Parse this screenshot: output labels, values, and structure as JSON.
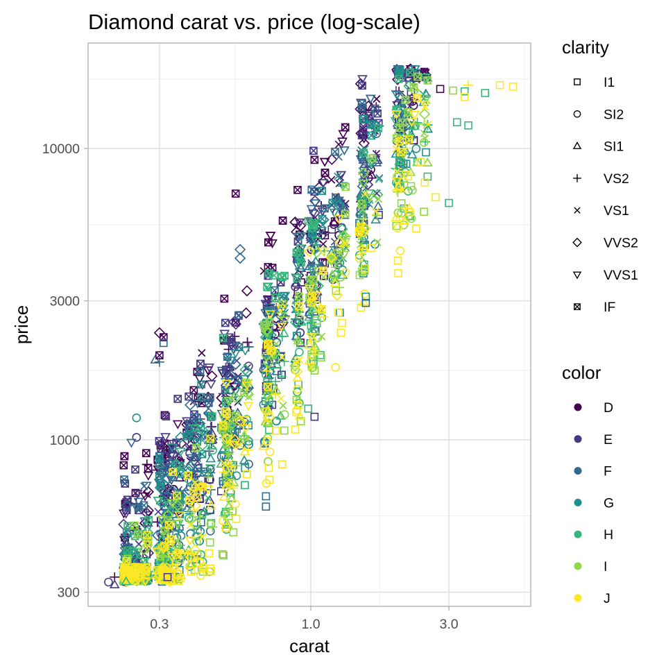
{
  "chart_data": {
    "type": "scatter",
    "title": "Diamond carat vs. price (log-scale)",
    "xlabel": "carat",
    "ylabel": "price",
    "x_scale": "log10",
    "y_scale": "log10",
    "xlim": [
      0.18,
      5.5
    ],
    "ylim": [
      250,
      20000
    ],
    "x_ticks": [
      {
        "value": 0.3,
        "label": "0.3"
      },
      {
        "value": 1.0,
        "label": "1.0"
      },
      {
        "value": 3.0,
        "label": "3.0"
      }
    ],
    "y_ticks": [
      {
        "value": 300,
        "label": "300"
      },
      {
        "value": 1000,
        "label": "1000"
      },
      {
        "value": 3000,
        "label": "3000"
      },
      {
        "value": 10000,
        "label": "10000"
      }
    ],
    "x_minor_grid": [
      0.548,
      1.732,
      5.477
    ],
    "y_minor_grid": [
      548,
      1732,
      5477,
      17321
    ],
    "grid": true,
    "shape_legend": {
      "title": "clarity",
      "placement": "right",
      "entries": [
        {
          "label": "I1",
          "shape": "square-open"
        },
        {
          "label": "SI2",
          "shape": "circle-open"
        },
        {
          "label": "SI1",
          "shape": "triangle-open"
        },
        {
          "label": "VS2",
          "shape": "plus"
        },
        {
          "label": "VS1",
          "shape": "cross"
        },
        {
          "label": "VVS2",
          "shape": "diamond-open"
        },
        {
          "label": "VVS1",
          "shape": "triangle-down-open"
        },
        {
          "label": "IF",
          "shape": "square-cross"
        }
      ]
    },
    "color_legend": {
      "title": "color",
      "placement": "right",
      "entries": [
        {
          "label": "D",
          "color": "#440154"
        },
        {
          "label": "E",
          "color": "#443A83"
        },
        {
          "label": "F",
          "color": "#31688E"
        },
        {
          "label": "G",
          "color": "#21908C"
        },
        {
          "label": "H",
          "color": "#35B779"
        },
        {
          "label": "I",
          "color": "#8FD744"
        },
        {
          "label": "J",
          "color": "#FDE725"
        }
      ]
    },
    "trend_note": "dense cloud; price rises ~ carat^1.7; D/IF (purple) at top-left edge, J/I1 (yellow/squares) at bottom-right edge",
    "outliers": [
      {
        "x": 0.3,
        "y": 2330,
        "color": "D",
        "clarity": "VVS2"
      },
      {
        "x": 0.31,
        "y": 2250,
        "color": "D",
        "clarity": "IF"
      },
      {
        "x": 0.31,
        "y": 2150,
        "color": "F",
        "clarity": "I1"
      },
      {
        "x": 0.29,
        "y": 1880,
        "color": "F",
        "clarity": "SI1"
      },
      {
        "x": 0.3,
        "y": 1850,
        "color": "F",
        "clarity": "VS2"
      },
      {
        "x": 0.3,
        "y": 1950,
        "color": "D",
        "clarity": "IF"
      },
      {
        "x": 0.25,
        "y": 1190,
        "color": "G",
        "clarity": "SI2"
      },
      {
        "x": 0.25,
        "y": 1020,
        "color": "E",
        "clarity": "SI2"
      },
      {
        "x": 0.24,
        "y": 980,
        "color": "F",
        "clarity": "VVS1"
      },
      {
        "x": 0.27,
        "y": 900,
        "color": "D",
        "clarity": "IF"
      },
      {
        "x": 0.55,
        "y": 7000,
        "color": "D",
        "clarity": "IF"
      },
      {
        "x": 0.57,
        "y": 4500,
        "color": "F",
        "clarity": "VVS2"
      },
      {
        "x": 0.57,
        "y": 4200,
        "color": "F",
        "clarity": "VVS2"
      },
      {
        "x": 1.03,
        "y": 1200,
        "color": "E",
        "clarity": "I1"
      },
      {
        "x": 2.8,
        "y": 16000,
        "color": "D",
        "clarity": "I1"
      },
      {
        "x": 3.5,
        "y": 16500,
        "color": "J",
        "clarity": "VS2"
      },
      {
        "x": 4.5,
        "y": 16500,
        "color": "J",
        "clarity": "I1"
      },
      {
        "x": 5.0,
        "y": 16300,
        "color": "J",
        "clarity": "I1"
      },
      {
        "x": 4.0,
        "y": 15500,
        "color": "H",
        "clarity": "I1"
      },
      {
        "x": 3.1,
        "y": 15800,
        "color": "I",
        "clarity": "I1"
      },
      {
        "x": 3.4,
        "y": 15700,
        "color": "H",
        "clarity": "I1"
      },
      {
        "x": 3.4,
        "y": 15000,
        "color": "J",
        "clarity": "I1"
      },
      {
        "x": 3.0,
        "y": 6500,
        "color": "H",
        "clarity": "I1"
      },
      {
        "x": 2.7,
        "y": 6800,
        "color": "J",
        "clarity": "I1"
      },
      {
        "x": 2.5,
        "y": 9700,
        "color": "G",
        "clarity": "I1"
      },
      {
        "x": 2.4,
        "y": 9000,
        "color": "J",
        "clarity": "I1"
      },
      {
        "x": 3.5,
        "y": 12000,
        "color": "H",
        "clarity": "I1"
      },
      {
        "x": 3.2,
        "y": 12300,
        "color": "H",
        "clarity": "I1"
      },
      {
        "x": 1.55,
        "y": 3100,
        "color": "G",
        "clarity": "I1"
      },
      {
        "x": 1.55,
        "y": 2950,
        "color": "F",
        "clarity": "I1"
      },
      {
        "x": 0.98,
        "y": 1280,
        "color": "H",
        "clarity": "I1"
      },
      {
        "x": 0.7,
        "y": 640,
        "color": "F",
        "clarity": "I1"
      },
      {
        "x": 0.7,
        "y": 590,
        "color": "F",
        "clarity": "I1"
      },
      {
        "x": 0.21,
        "y": 338,
        "color": "D",
        "clarity": "VS2"
      },
      {
        "x": 0.2,
        "y": 325,
        "color": "E",
        "clarity": "SI2"
      },
      {
        "x": 0.21,
        "y": 318,
        "color": "E",
        "clarity": "SI1"
      },
      {
        "x": 0.23,
        "y": 326,
        "color": "H",
        "clarity": "SI1"
      },
      {
        "x": 0.32,
        "y": 338,
        "color": "E",
        "clarity": "I1"
      }
    ]
  }
}
